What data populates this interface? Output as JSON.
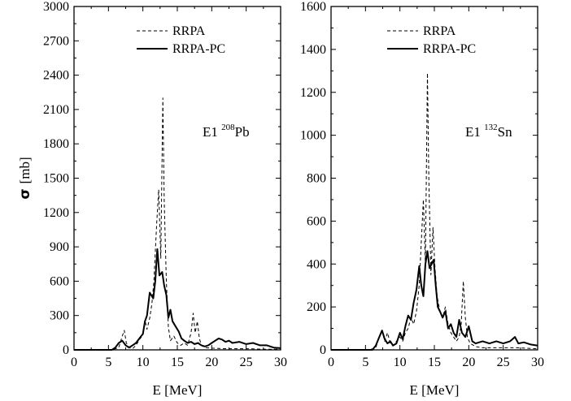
{
  "chart_data": [
    {
      "type": "line",
      "ylabel": "σ [mb]",
      "xlabel": "E [MeV]",
      "xlim": [
        0,
        30
      ],
      "ylim": [
        0,
        3000
      ],
      "xticks": [
        "0",
        "5",
        "10",
        "15",
        "20",
        "25",
        "30"
      ],
      "yticks": [
        "0",
        "300",
        "600",
        "900",
        "1200",
        "1500",
        "1800",
        "2100",
        "2400",
        "2700",
        "3000"
      ],
      "legend": "top-center",
      "annotation": {
        "prefix": "E1",
        "mass": "208",
        "element": "Pb"
      },
      "series": [
        {
          "name": "RRPA",
          "style": "dashed",
          "points": [
            [
              0,
              0
            ],
            [
              5.5,
              0
            ],
            [
              6.5,
              20
            ],
            [
              7,
              120
            ],
            [
              7.3,
              170
            ],
            [
              7.6,
              60
            ],
            [
              8,
              20
            ],
            [
              8.5,
              10
            ],
            [
              9,
              40
            ],
            [
              9.5,
              90
            ],
            [
              10,
              130
            ],
            [
              10.3,
              260
            ],
            [
              10.6,
              180
            ],
            [
              11,
              280
            ],
            [
              11.3,
              400
            ],
            [
              11.6,
              600
            ],
            [
              12,
              1100
            ],
            [
              12.3,
              1400
            ],
            [
              12.6,
              800
            ],
            [
              12.9,
              2200
            ],
            [
              13.1,
              1300
            ],
            [
              13.4,
              600
            ],
            [
              13.7,
              200
            ],
            [
              14,
              80
            ],
            [
              14.5,
              120
            ],
            [
              15,
              60
            ],
            [
              15.5,
              40
            ],
            [
              16,
              60
            ],
            [
              16.5,
              40
            ],
            [
              17,
              150
            ],
            [
              17.3,
              320
            ],
            [
              17.6,
              150
            ],
            [
              17.9,
              250
            ],
            [
              18.2,
              100
            ],
            [
              18.5,
              40
            ],
            [
              19,
              20
            ],
            [
              20,
              15
            ],
            [
              22,
              10
            ],
            [
              25,
              10
            ],
            [
              28,
              5
            ],
            [
              30,
              5
            ]
          ]
        },
        {
          "name": "RRPA-PC",
          "style": "solid",
          "points": [
            [
              0,
              0
            ],
            [
              5.5,
              0
            ],
            [
              6,
              20
            ],
            [
              6.5,
              60
            ],
            [
              7,
              80
            ],
            [
              7.5,
              40
            ],
            [
              8,
              20
            ],
            [
              8.5,
              40
            ],
            [
              9,
              60
            ],
            [
              9.5,
              100
            ],
            [
              10,
              140
            ],
            [
              10.3,
              250
            ],
            [
              10.6,
              300
            ],
            [
              11,
              500
            ],
            [
              11.5,
              450
            ],
            [
              11.8,
              600
            ],
            [
              12.1,
              880
            ],
            [
              12.4,
              650
            ],
            [
              12.8,
              680
            ],
            [
              13.1,
              560
            ],
            [
              13.4,
              480
            ],
            [
              13.7,
              280
            ],
            [
              14,
              350
            ],
            [
              14.3,
              250
            ],
            [
              14.8,
              200
            ],
            [
              15.2,
              160
            ],
            [
              15.6,
              100
            ],
            [
              16,
              80
            ],
            [
              16.5,
              60
            ],
            [
              17,
              70
            ],
            [
              17.5,
              50
            ],
            [
              18,
              60
            ],
            [
              18.5,
              40
            ],
            [
              19,
              30
            ],
            [
              19.5,
              40
            ],
            [
              20,
              60
            ],
            [
              20.5,
              80
            ],
            [
              21,
              100
            ],
            [
              21.5,
              90
            ],
            [
              22,
              70
            ],
            [
              22.5,
              80
            ],
            [
              23,
              60
            ],
            [
              24,
              70
            ],
            [
              25,
              50
            ],
            [
              26,
              60
            ],
            [
              27,
              40
            ],
            [
              28,
              40
            ],
            [
              29,
              20
            ],
            [
              30,
              15
            ]
          ]
        }
      ]
    },
    {
      "type": "line",
      "ylabel": "",
      "xlabel": "E [MeV]",
      "xlim": [
        0,
        30
      ],
      "ylim": [
        0,
        1600
      ],
      "xticks": [
        "0",
        "5",
        "10",
        "15",
        "20",
        "25",
        "30"
      ],
      "yticks": [
        "0",
        "200",
        "400",
        "600",
        "800",
        "1000",
        "1200",
        "1400",
        "1600"
      ],
      "legend": "top-center",
      "annotation": {
        "prefix": "E1",
        "mass": "132",
        "element": "Sn"
      },
      "series": [
        {
          "name": "RRPA",
          "style": "dashed",
          "points": [
            [
              0,
              0
            ],
            [
              5.5,
              0
            ],
            [
              6.5,
              10
            ],
            [
              7,
              60
            ],
            [
              7.4,
              90
            ],
            [
              7.8,
              40
            ],
            [
              8.2,
              80
            ],
            [
              8.6,
              30
            ],
            [
              9,
              20
            ],
            [
              9.5,
              40
            ],
            [
              10,
              60
            ],
            [
              10.4,
              40
            ],
            [
              10.8,
              80
            ],
            [
              11.2,
              100
            ],
            [
              11.6,
              150
            ],
            [
              12,
              120
            ],
            [
              12.4,
              180
            ],
            [
              12.8,
              300
            ],
            [
              13.1,
              500
            ],
            [
              13.4,
              700
            ],
            [
              13.7,
              400
            ],
            [
              14,
              1290
            ],
            [
              14.2,
              800
            ],
            [
              14.5,
              350
            ],
            [
              14.8,
              570
            ],
            [
              15.1,
              380
            ],
            [
              15.4,
              250
            ],
            [
              15.8,
              180
            ],
            [
              16.2,
              150
            ],
            [
              16.6,
              200
            ],
            [
              17,
              120
            ],
            [
              17.4,
              80
            ],
            [
              17.8,
              60
            ],
            [
              18.2,
              40
            ],
            [
              18.6,
              60
            ],
            [
              18.9,
              120
            ],
            [
              19.2,
              320
            ],
            [
              19.5,
              150
            ],
            [
              19.8,
              60
            ],
            [
              20.2,
              30
            ],
            [
              21,
              15
            ],
            [
              22,
              10
            ],
            [
              24,
              10
            ],
            [
              27,
              10
            ],
            [
              30,
              5
            ]
          ]
        },
        {
          "name": "RRPA-PC",
          "style": "solid",
          "points": [
            [
              0,
              0
            ],
            [
              6,
              0
            ],
            [
              6.5,
              20
            ],
            [
              7,
              60
            ],
            [
              7.4,
              90
            ],
            [
              7.8,
              50
            ],
            [
              8.2,
              30
            ],
            [
              8.6,
              40
            ],
            [
              9,
              20
            ],
            [
              9.5,
              30
            ],
            [
              10,
              80
            ],
            [
              10.4,
              50
            ],
            [
              10.8,
              110
            ],
            [
              11.2,
              160
            ],
            [
              11.6,
              140
            ],
            [
              12,
              220
            ],
            [
              12.4,
              280
            ],
            [
              12.8,
              390
            ],
            [
              13.1,
              300
            ],
            [
              13.4,
              250
            ],
            [
              13.7,
              400
            ],
            [
              14,
              460
            ],
            [
              14.3,
              380
            ],
            [
              14.6,
              400
            ],
            [
              14.9,
              420
            ],
            [
              15.2,
              300
            ],
            [
              15.5,
              200
            ],
            [
              15.8,
              180
            ],
            [
              16.2,
              150
            ],
            [
              16.6,
              180
            ],
            [
              17,
              100
            ],
            [
              17.4,
              120
            ],
            [
              17.8,
              80
            ],
            [
              18.2,
              60
            ],
            [
              18.6,
              140
            ],
            [
              19,
              80
            ],
            [
              19.5,
              60
            ],
            [
              20,
              110
            ],
            [
              20.5,
              40
            ],
            [
              21,
              30
            ],
            [
              22,
              40
            ],
            [
              23,
              30
            ],
            [
              24,
              40
            ],
            [
              25,
              30
            ],
            [
              26,
              40
            ],
            [
              26.7,
              60
            ],
            [
              27.2,
              30
            ],
            [
              28,
              35
            ],
            [
              29,
              25
            ],
            [
              30,
              20
            ]
          ]
        }
      ]
    }
  ]
}
